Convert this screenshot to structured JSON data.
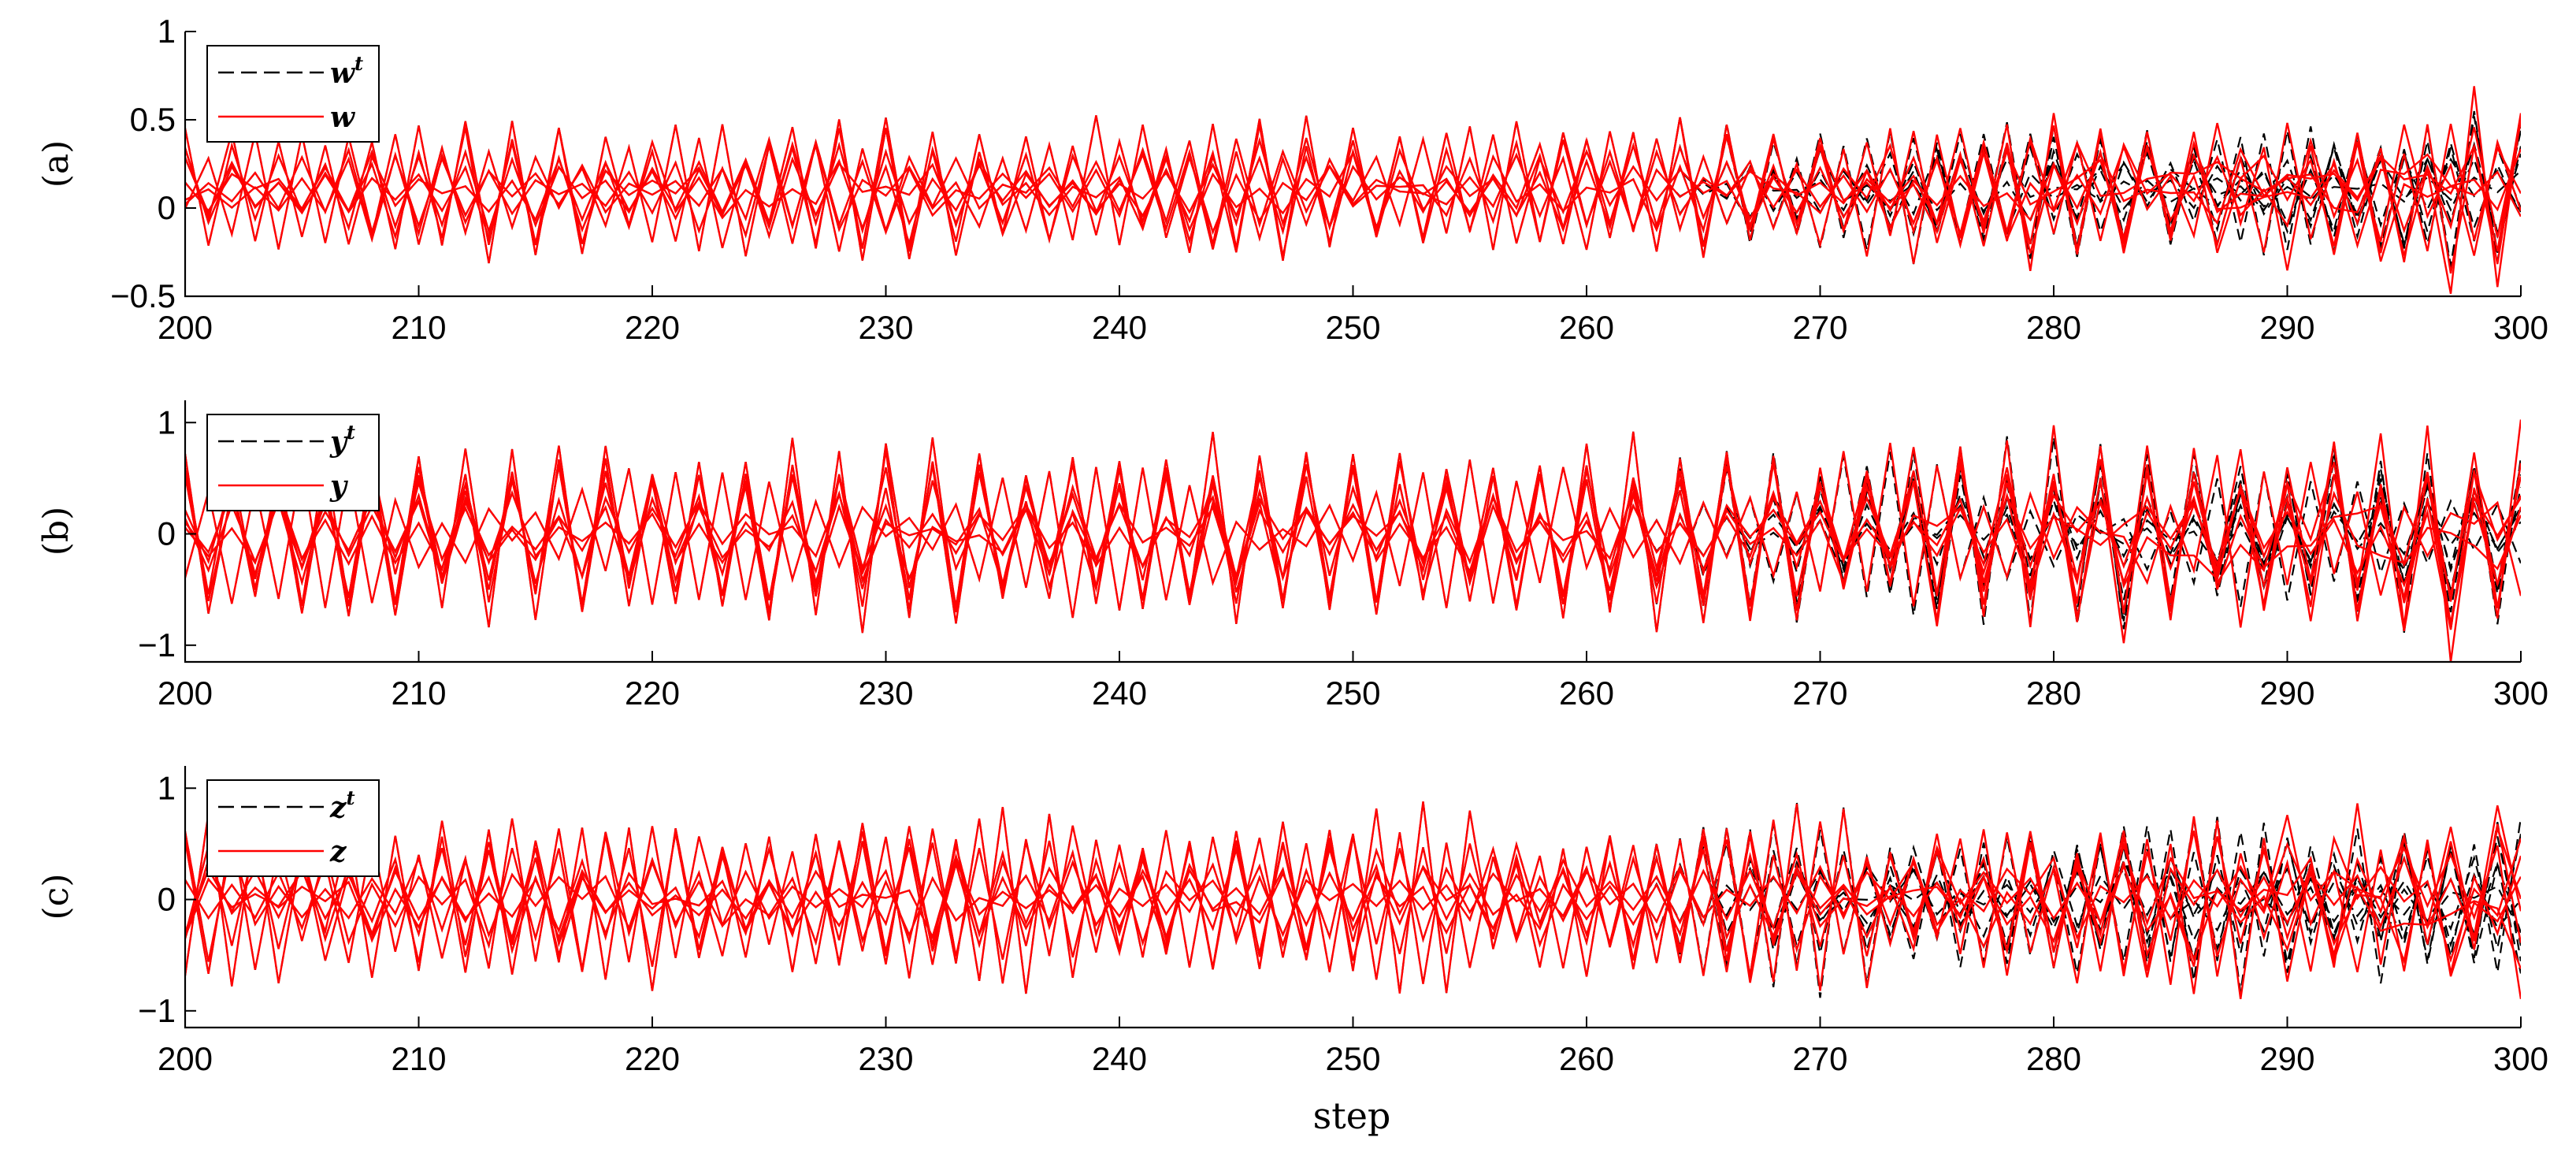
{
  "chart_data": [
    {
      "type": "line",
      "panel_label": "(a)",
      "xlim": [
        200,
        300
      ],
      "ylim": [
        -0.5,
        1
      ],
      "xticks": [
        "200",
        "210",
        "220",
        "230",
        "240",
        "250",
        "260",
        "270",
        "280",
        "290",
        "300"
      ],
      "yticks": [
        "−0.5",
        "0",
        "0.5",
        "1"
      ],
      "ytick_values": [
        -0.5,
        0,
        0.5,
        1
      ],
      "legend_position": "top-left",
      "series": [
        {
          "name": "w",
          "superscript": "t",
          "style": "dashed",
          "color": "#000000"
        },
        {
          "name": "w",
          "superscript": "",
          "style": "solid",
          "color": "#ff0000"
        }
      ],
      "signal": {
        "lines": 8,
        "amplitude": 0.42,
        "center": 0.1,
        "divergence_start": 263
      }
    },
    {
      "type": "line",
      "panel_label": "(b)",
      "xlim": [
        200,
        300
      ],
      "ylim": [
        -1.15,
        1.2
      ],
      "xticks": [
        "200",
        "210",
        "220",
        "230",
        "240",
        "250",
        "260",
        "270",
        "280",
        "290",
        "300"
      ],
      "yticks": [
        "−1",
        "0",
        "1"
      ],
      "ytick_values": [
        -1,
        0,
        1
      ],
      "legend_position": "top-left",
      "series": [
        {
          "name": "y",
          "superscript": "t",
          "style": "dashed",
          "color": "#000000"
        },
        {
          "name": "y",
          "superscript": "",
          "style": "solid",
          "color": "#ff0000"
        }
      ],
      "signal": {
        "lines": 8,
        "amplitude": 0.8,
        "center": 0.0,
        "divergence_start": 262
      }
    },
    {
      "type": "line",
      "panel_label": "(c)",
      "xlim": [
        200,
        300
      ],
      "ylim": [
        -1.15,
        1.2
      ],
      "xticks": [
        "200",
        "210",
        "220",
        "230",
        "240",
        "250",
        "260",
        "270",
        "280",
        "290",
        "300"
      ],
      "yticks": [
        "−1",
        "0",
        "1"
      ],
      "ytick_values": [
        -1,
        0,
        1
      ],
      "legend_position": "top-left",
      "series": [
        {
          "name": "z",
          "superscript": "t",
          "style": "dashed",
          "color": "#000000"
        },
        {
          "name": "z",
          "superscript": "",
          "style": "solid",
          "color": "#ff0000"
        }
      ],
      "signal": {
        "lines": 8,
        "amplitude": 0.8,
        "center": 0.0,
        "divergence_start": 262
      }
    }
  ],
  "xlabel": "step"
}
